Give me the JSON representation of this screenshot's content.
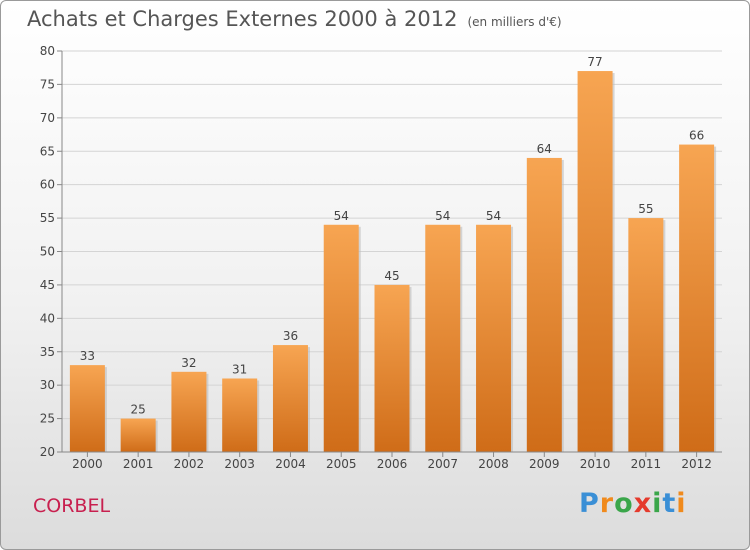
{
  "header": {
    "title": "Achats et Charges Externes 2000 à 2012",
    "subtitle": "(en milliers d'€)"
  },
  "footer": {
    "commune": "CORBEL",
    "brand": "Proxiti"
  },
  "colors": {
    "bar_light": "#f7a552",
    "bar_dark": "#cf6c18",
    "commune_text": "#c8204f"
  },
  "chart_data": {
    "type": "bar",
    "categories": [
      "2000",
      "2001",
      "2002",
      "2003",
      "2004",
      "2005",
      "2006",
      "2007",
      "2008",
      "2009",
      "2010",
      "2011",
      "2012"
    ],
    "values": [
      33,
      25,
      32,
      31,
      36,
      54,
      45,
      54,
      54,
      64,
      77,
      55,
      66
    ],
    "ylim": [
      20,
      80
    ],
    "yticks": [
      20,
      25,
      30,
      35,
      40,
      45,
      50,
      55,
      60,
      65,
      70,
      75,
      80
    ],
    "grid": true,
    "data_labels": true
  }
}
